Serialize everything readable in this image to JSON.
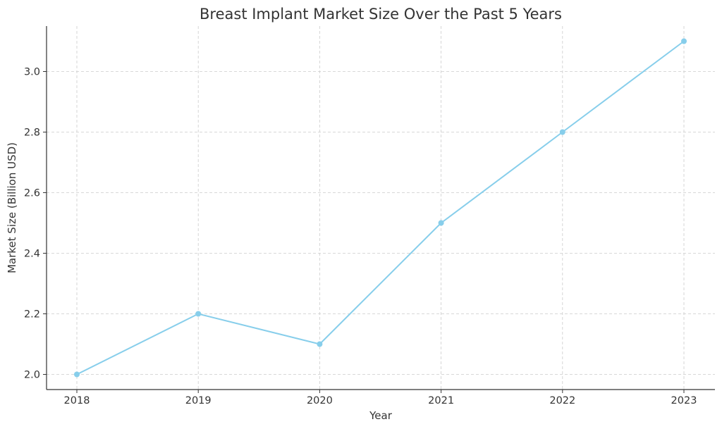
{
  "chart_data": {
    "type": "line",
    "title": "Breast Implant Market Size Over the Past 5 Years",
    "xlabel": "Year",
    "ylabel": "Market Size (Billion USD)",
    "categories": [
      "2018",
      "2019",
      "2020",
      "2021",
      "2022",
      "2023"
    ],
    "series": [
      {
        "values": [
          2.0,
          2.2,
          2.1,
          2.5,
          2.8,
          3.1
        ],
        "color": "#87ceeb",
        "marker": "circle"
      }
    ],
    "ylim": [
      1.95,
      3.15
    ],
    "yticks": [
      2.0,
      2.2,
      2.4,
      2.6,
      2.8,
      3.0
    ],
    "ytick_labels": [
      "2.0",
      "2.2",
      "2.4",
      "2.6",
      "2.8",
      "3.0"
    ],
    "grid": true
  }
}
